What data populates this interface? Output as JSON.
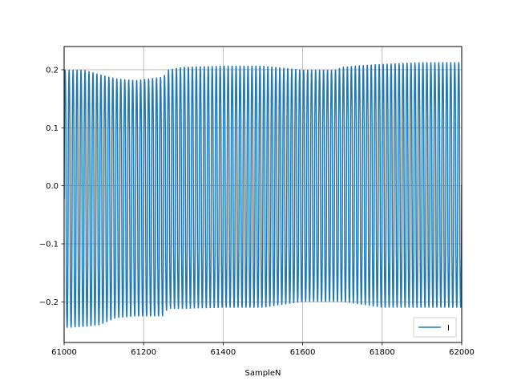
{
  "chart_data": {
    "type": "line",
    "title": "",
    "xlabel": "SampleN",
    "ylabel": "",
    "xlim": [
      61000,
      62000
    ],
    "ylim": [
      -0.27,
      0.24
    ],
    "xticks": [
      61000,
      61200,
      61400,
      61600,
      61800,
      62000
    ],
    "yticks": [
      -0.2,
      -0.1,
      0.0,
      0.1,
      0.2
    ],
    "ytick_labels": [
      "−0.2",
      "−0.1",
      "0.0",
      "0.1",
      "0.2"
    ],
    "grid": true,
    "legend": {
      "placement": "lower-right",
      "entries": [
        "I"
      ]
    },
    "series": [
      {
        "name": "I",
        "color": "#1f77b4",
        "oscillation_period_samples": 10,
        "envelope_x": [
          61000,
          61050,
          61090,
          61130,
          61180,
          61250,
          61260,
          61300,
          61400,
          61500,
          61600,
          61680,
          61700,
          61750,
          61800,
          61900,
          62000
        ],
        "envelope_upper": [
          0.2,
          0.2,
          0.192,
          0.185,
          0.182,
          0.188,
          0.2,
          0.205,
          0.207,
          0.207,
          0.2,
          0.2,
          0.205,
          0.208,
          0.21,
          0.213,
          0.213
        ],
        "envelope_lower": [
          -0.245,
          -0.243,
          -0.24,
          -0.228,
          -0.225,
          -0.225,
          -0.212,
          -0.212,
          -0.21,
          -0.21,
          -0.2,
          -0.2,
          -0.2,
          -0.205,
          -0.21,
          -0.21,
          -0.21
        ]
      }
    ]
  }
}
